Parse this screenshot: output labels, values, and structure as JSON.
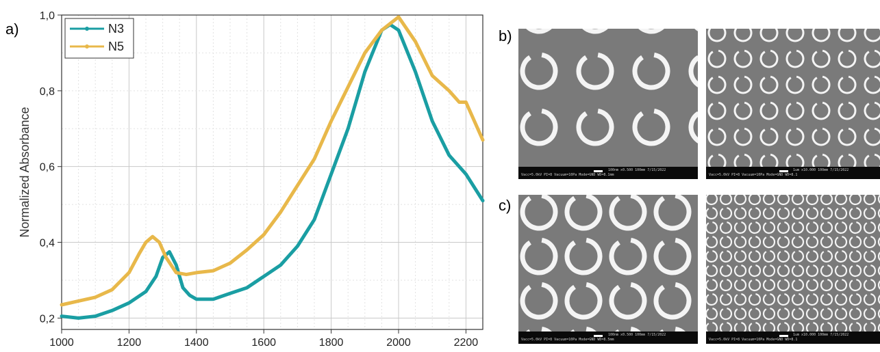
{
  "panel_labels": {
    "a": "a)",
    "b": "b)",
    "c": "c)"
  },
  "colors": {
    "N3": "#1a9ea3",
    "N5": "#e8b84a",
    "sem_bg": "#7a7a7a",
    "ring": "#f4f4f4"
  },
  "chart_data": {
    "type": "line",
    "title": "",
    "xlabel": "",
    "ylabel": "Normalized Absorbance",
    "xlim": [
      1000,
      2250
    ],
    "ylim": [
      0.17,
      1.0
    ],
    "xticks": [
      1000,
      1200,
      1400,
      1600,
      1800,
      2000,
      2200
    ],
    "xtick_labels": [
      "1000",
      "1200",
      "1400",
      "1600",
      "1800",
      "2000",
      "2200"
    ],
    "yticks": [
      0.2,
      0.4,
      0.6,
      0.8,
      1.0
    ],
    "ytick_labels": [
      "0,2",
      "0,4",
      "0,6",
      "0,8",
      "1,0"
    ],
    "grid": true,
    "legend": "top-left",
    "series": [
      {
        "name": "N3",
        "color": "#1a9ea3",
        "x": [
          1000,
          1050,
          1100,
          1150,
          1200,
          1250,
          1280,
          1300,
          1320,
          1340,
          1360,
          1380,
          1400,
          1450,
          1500,
          1550,
          1600,
          1650,
          1700,
          1750,
          1800,
          1850,
          1900,
          1950,
          1975,
          2000,
          2050,
          2100,
          2150,
          2200,
          2250
        ],
        "y": [
          0.205,
          0.2,
          0.205,
          0.22,
          0.24,
          0.27,
          0.31,
          0.36,
          0.375,
          0.34,
          0.28,
          0.26,
          0.25,
          0.25,
          0.265,
          0.28,
          0.31,
          0.34,
          0.39,
          0.46,
          0.58,
          0.7,
          0.85,
          0.96,
          0.975,
          0.96,
          0.85,
          0.72,
          0.63,
          0.58,
          0.51
        ]
      },
      {
        "name": "N5",
        "color": "#e8b84a",
        "x": [
          1000,
          1050,
          1100,
          1150,
          1200,
          1230,
          1250,
          1270,
          1290,
          1310,
          1340,
          1370,
          1400,
          1450,
          1500,
          1550,
          1600,
          1650,
          1700,
          1750,
          1800,
          1850,
          1900,
          1950,
          2000,
          2050,
          2100,
          2150,
          2180,
          2200,
          2250
        ],
        "y": [
          0.235,
          0.245,
          0.255,
          0.275,
          0.32,
          0.37,
          0.4,
          0.415,
          0.4,
          0.36,
          0.32,
          0.315,
          0.32,
          0.325,
          0.345,
          0.38,
          0.42,
          0.48,
          0.55,
          0.62,
          0.72,
          0.81,
          0.9,
          0.96,
          0.995,
          0.93,
          0.84,
          0.8,
          0.77,
          0.77,
          0.67
        ]
      }
    ]
  },
  "sem_images": [
    {
      "id": "b-left",
      "panel": "b",
      "caption_line1": "100nm      x0.500  100mm  7/15/2022",
      "caption_line2": "Vacc=5.0kV  PI=8    Vacuum=10Pa    Mode=GND  WD=8.1mm"
    },
    {
      "id": "b-right",
      "panel": "b",
      "caption_line1": "1um       x10.000  100mm  7/15/2022",
      "caption_line2": "Vacc=5.0kV  PI=8    Vacuum=10Pa    Mode=GND  WD=8.1"
    },
    {
      "id": "c-left",
      "panel": "c",
      "caption_line1": "100nm      x0.500  100mm  7/15/2022",
      "caption_line2": "Vacc=5.0kV  PI=8    Vacuum=10Pa    Mode=GND  WD=8.5mm"
    },
    {
      "id": "c-right",
      "panel": "c",
      "caption_line1": "1um       x10.000  100mm  7/15/2022",
      "caption_line2": "Vacc=5.0kV  PI=8    Vacuum=10Pa    Mode=GND  WD=8.1"
    }
  ]
}
